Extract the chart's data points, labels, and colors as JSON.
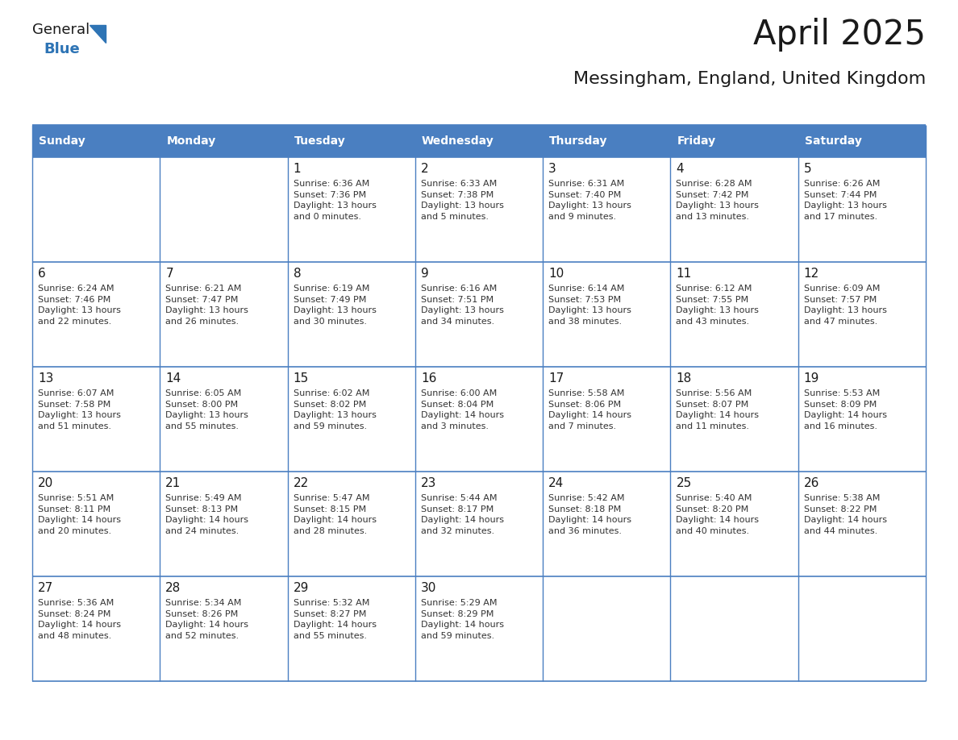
{
  "title": "April 2025",
  "subtitle": "Messingham, England, United Kingdom",
  "header_bg": "#4a7fc1",
  "header_text": "#FFFFFF",
  "cell_bg": "#FFFFFF",
  "day_headers": [
    "Sunday",
    "Monday",
    "Tuesday",
    "Wednesday",
    "Thursday",
    "Friday",
    "Saturday"
  ],
  "title_color": "#1a1a1a",
  "subtitle_color": "#1a1a1a",
  "border_color": "#4a7fc1",
  "text_color": "#333333",
  "day_num_color": "#1a1a1a",
  "logo_general_color": "#1a1a1a",
  "logo_blue_color": "#2E74B5",
  "weeks": [
    [
      {
        "day": null,
        "info": ""
      },
      {
        "day": null,
        "info": ""
      },
      {
        "day": 1,
        "info": "Sunrise: 6:36 AM\nSunset: 7:36 PM\nDaylight: 13 hours\nand 0 minutes."
      },
      {
        "day": 2,
        "info": "Sunrise: 6:33 AM\nSunset: 7:38 PM\nDaylight: 13 hours\nand 5 minutes."
      },
      {
        "day": 3,
        "info": "Sunrise: 6:31 AM\nSunset: 7:40 PM\nDaylight: 13 hours\nand 9 minutes."
      },
      {
        "day": 4,
        "info": "Sunrise: 6:28 AM\nSunset: 7:42 PM\nDaylight: 13 hours\nand 13 minutes."
      },
      {
        "day": 5,
        "info": "Sunrise: 6:26 AM\nSunset: 7:44 PM\nDaylight: 13 hours\nand 17 minutes."
      }
    ],
    [
      {
        "day": 6,
        "info": "Sunrise: 6:24 AM\nSunset: 7:46 PM\nDaylight: 13 hours\nand 22 minutes."
      },
      {
        "day": 7,
        "info": "Sunrise: 6:21 AM\nSunset: 7:47 PM\nDaylight: 13 hours\nand 26 minutes."
      },
      {
        "day": 8,
        "info": "Sunrise: 6:19 AM\nSunset: 7:49 PM\nDaylight: 13 hours\nand 30 minutes."
      },
      {
        "day": 9,
        "info": "Sunrise: 6:16 AM\nSunset: 7:51 PM\nDaylight: 13 hours\nand 34 minutes."
      },
      {
        "day": 10,
        "info": "Sunrise: 6:14 AM\nSunset: 7:53 PM\nDaylight: 13 hours\nand 38 minutes."
      },
      {
        "day": 11,
        "info": "Sunrise: 6:12 AM\nSunset: 7:55 PM\nDaylight: 13 hours\nand 43 minutes."
      },
      {
        "day": 12,
        "info": "Sunrise: 6:09 AM\nSunset: 7:57 PM\nDaylight: 13 hours\nand 47 minutes."
      }
    ],
    [
      {
        "day": 13,
        "info": "Sunrise: 6:07 AM\nSunset: 7:58 PM\nDaylight: 13 hours\nand 51 minutes."
      },
      {
        "day": 14,
        "info": "Sunrise: 6:05 AM\nSunset: 8:00 PM\nDaylight: 13 hours\nand 55 minutes."
      },
      {
        "day": 15,
        "info": "Sunrise: 6:02 AM\nSunset: 8:02 PM\nDaylight: 13 hours\nand 59 minutes."
      },
      {
        "day": 16,
        "info": "Sunrise: 6:00 AM\nSunset: 8:04 PM\nDaylight: 14 hours\nand 3 minutes."
      },
      {
        "day": 17,
        "info": "Sunrise: 5:58 AM\nSunset: 8:06 PM\nDaylight: 14 hours\nand 7 minutes."
      },
      {
        "day": 18,
        "info": "Sunrise: 5:56 AM\nSunset: 8:07 PM\nDaylight: 14 hours\nand 11 minutes."
      },
      {
        "day": 19,
        "info": "Sunrise: 5:53 AM\nSunset: 8:09 PM\nDaylight: 14 hours\nand 16 minutes."
      }
    ],
    [
      {
        "day": 20,
        "info": "Sunrise: 5:51 AM\nSunset: 8:11 PM\nDaylight: 14 hours\nand 20 minutes."
      },
      {
        "day": 21,
        "info": "Sunrise: 5:49 AM\nSunset: 8:13 PM\nDaylight: 14 hours\nand 24 minutes."
      },
      {
        "day": 22,
        "info": "Sunrise: 5:47 AM\nSunset: 8:15 PM\nDaylight: 14 hours\nand 28 minutes."
      },
      {
        "day": 23,
        "info": "Sunrise: 5:44 AM\nSunset: 8:17 PM\nDaylight: 14 hours\nand 32 minutes."
      },
      {
        "day": 24,
        "info": "Sunrise: 5:42 AM\nSunset: 8:18 PM\nDaylight: 14 hours\nand 36 minutes."
      },
      {
        "day": 25,
        "info": "Sunrise: 5:40 AM\nSunset: 8:20 PM\nDaylight: 14 hours\nand 40 minutes."
      },
      {
        "day": 26,
        "info": "Sunrise: 5:38 AM\nSunset: 8:22 PM\nDaylight: 14 hours\nand 44 minutes."
      }
    ],
    [
      {
        "day": 27,
        "info": "Sunrise: 5:36 AM\nSunset: 8:24 PM\nDaylight: 14 hours\nand 48 minutes."
      },
      {
        "day": 28,
        "info": "Sunrise: 5:34 AM\nSunset: 8:26 PM\nDaylight: 14 hours\nand 52 minutes."
      },
      {
        "day": 29,
        "info": "Sunrise: 5:32 AM\nSunset: 8:27 PM\nDaylight: 14 hours\nand 55 minutes."
      },
      {
        "day": 30,
        "info": "Sunrise: 5:29 AM\nSunset: 8:29 PM\nDaylight: 14 hours\nand 59 minutes."
      },
      {
        "day": null,
        "info": ""
      },
      {
        "day": null,
        "info": ""
      },
      {
        "day": null,
        "info": ""
      }
    ]
  ]
}
